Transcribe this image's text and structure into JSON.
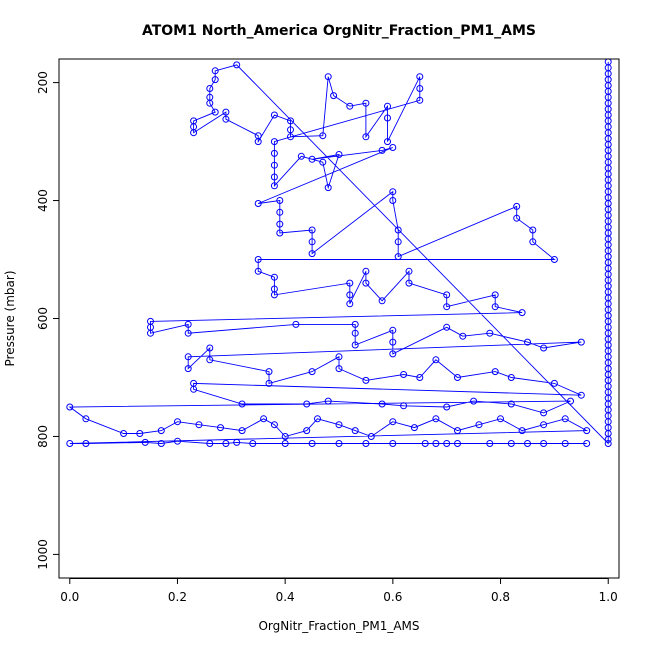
{
  "chart_data": {
    "type": "scatter",
    "title": "ATOM1 North_America OrgNitr_Fraction_PM1_AMS",
    "xlabel": "OrgNitr_Fraction_PM1_AMS",
    "ylabel": "Pressure (mbar)",
    "xlim": [
      -0.02,
      1.02
    ],
    "ylim": [
      1040,
      160
    ],
    "y_reversed": true,
    "grid": false,
    "x_ticks": [
      0.0,
      0.2,
      0.4,
      0.6,
      0.8,
      1.0
    ],
    "x_tick_labels": [
      "0.0",
      "0.2",
      "0.4",
      "0.6",
      "0.8",
      "1.0"
    ],
    "y_ticks": [
      200,
      400,
      600,
      800,
      1000
    ],
    "y_tick_labels": [
      "200",
      "400",
      "600",
      "800",
      "1000"
    ],
    "point_style": "open-circle",
    "connect_points": true,
    "series": [
      {
        "color": "#0000ff",
        "points": [
          [
            1.0,
            165
          ],
          [
            1.0,
            175
          ],
          [
            1.0,
            185
          ],
          [
            1.0,
            195
          ],
          [
            1.0,
            205
          ],
          [
            1.0,
            215
          ],
          [
            1.0,
            225
          ],
          [
            1.0,
            235
          ],
          [
            1.0,
            245
          ],
          [
            1.0,
            255
          ],
          [
            1.0,
            265
          ],
          [
            1.0,
            275
          ],
          [
            1.0,
            285
          ],
          [
            1.0,
            295
          ],
          [
            1.0,
            305
          ],
          [
            1.0,
            315
          ],
          [
            1.0,
            325
          ],
          [
            1.0,
            335
          ],
          [
            1.0,
            345
          ],
          [
            1.0,
            355
          ],
          [
            1.0,
            365
          ],
          [
            1.0,
            375
          ],
          [
            1.0,
            385
          ],
          [
            1.0,
            395
          ],
          [
            1.0,
            405
          ],
          [
            1.0,
            415
          ],
          [
            1.0,
            425
          ],
          [
            1.0,
            435
          ],
          [
            1.0,
            445
          ],
          [
            1.0,
            455
          ],
          [
            1.0,
            465
          ],
          [
            1.0,
            475
          ],
          [
            1.0,
            485
          ],
          [
            1.0,
            495
          ],
          [
            1.0,
            505
          ],
          [
            1.0,
            515
          ],
          [
            1.0,
            525
          ],
          [
            1.0,
            535
          ],
          [
            1.0,
            545
          ],
          [
            1.0,
            555
          ],
          [
            1.0,
            565
          ],
          [
            1.0,
            575
          ],
          [
            1.0,
            585
          ],
          [
            1.0,
            595
          ],
          [
            1.0,
            605
          ],
          [
            1.0,
            615
          ],
          [
            1.0,
            625
          ],
          [
            1.0,
            635
          ],
          [
            1.0,
            645
          ],
          [
            1.0,
            655
          ],
          [
            1.0,
            665
          ],
          [
            1.0,
            675
          ],
          [
            1.0,
            685
          ],
          [
            1.0,
            695
          ],
          [
            1.0,
            705
          ],
          [
            1.0,
            715
          ],
          [
            1.0,
            725
          ],
          [
            1.0,
            735
          ],
          [
            1.0,
            745
          ],
          [
            1.0,
            755
          ],
          [
            1.0,
            765
          ],
          [
            1.0,
            775
          ],
          [
            1.0,
            785
          ],
          [
            1.0,
            795
          ],
          [
            1.0,
            805
          ],
          [
            1.0,
            812
          ],
          [
            0.31,
            170
          ],
          [
            0.27,
            180
          ],
          [
            0.27,
            195
          ],
          [
            0.26,
            210
          ],
          [
            0.26,
            225
          ],
          [
            0.26,
            235
          ],
          [
            0.27,
            250
          ],
          [
            0.23,
            265
          ],
          [
            0.23,
            275
          ],
          [
            0.23,
            285
          ],
          [
            0.29,
            250
          ],
          [
            0.29,
            262
          ],
          [
            0.35,
            290
          ],
          [
            0.35,
            300
          ],
          [
            0.38,
            255
          ],
          [
            0.41,
            265
          ],
          [
            0.41,
            280
          ],
          [
            0.41,
            292
          ],
          [
            0.47,
            290
          ],
          [
            0.48,
            190
          ],
          [
            0.49,
            222
          ],
          [
            0.52,
            240
          ],
          [
            0.55,
            235
          ],
          [
            0.55,
            292
          ],
          [
            0.59,
            240
          ],
          [
            0.59,
            260
          ],
          [
            0.59,
            300
          ],
          [
            0.65,
            190
          ],
          [
            0.65,
            210
          ],
          [
            0.65,
            230
          ],
          [
            0.38,
            300
          ],
          [
            0.38,
            320
          ],
          [
            0.38,
            340
          ],
          [
            0.38,
            360
          ],
          [
            0.38,
            375
          ],
          [
            0.43,
            325
          ],
          [
            0.47,
            335
          ],
          [
            0.48,
            378
          ],
          [
            0.5,
            322
          ],
          [
            0.45,
            330
          ],
          [
            0.58,
            315
          ],
          [
            0.6,
            310
          ],
          [
            0.35,
            405
          ],
          [
            0.39,
            400
          ],
          [
            0.39,
            420
          ],
          [
            0.39,
            440
          ],
          [
            0.39,
            455
          ],
          [
            0.45,
            450
          ],
          [
            0.45,
            470
          ],
          [
            0.45,
            490
          ],
          [
            0.6,
            385
          ],
          [
            0.6,
            400
          ],
          [
            0.61,
            450
          ],
          [
            0.61,
            470
          ],
          [
            0.61,
            495
          ],
          [
            0.83,
            410
          ],
          [
            0.83,
            430
          ],
          [
            0.86,
            450
          ],
          [
            0.86,
            470
          ],
          [
            0.9,
            500
          ],
          [
            0.35,
            500
          ],
          [
            0.35,
            520
          ],
          [
            0.38,
            530
          ],
          [
            0.38,
            550
          ],
          [
            0.38,
            560
          ],
          [
            0.52,
            540
          ],
          [
            0.52,
            560
          ],
          [
            0.52,
            575
          ],
          [
            0.55,
            520
          ],
          [
            0.55,
            540
          ],
          [
            0.58,
            570
          ],
          [
            0.63,
            520
          ],
          [
            0.63,
            540
          ],
          [
            0.7,
            560
          ],
          [
            0.7,
            580
          ],
          [
            0.79,
            560
          ],
          [
            0.79,
            580
          ],
          [
            0.84,
            590
          ],
          [
            0.15,
            605
          ],
          [
            0.15,
            615
          ],
          [
            0.15,
            625
          ],
          [
            0.22,
            610
          ],
          [
            0.22,
            625
          ],
          [
            0.42,
            610
          ],
          [
            0.53,
            610
          ],
          [
            0.53,
            625
          ],
          [
            0.53,
            645
          ],
          [
            0.6,
            620
          ],
          [
            0.6,
            640
          ],
          [
            0.6,
            660
          ],
          [
            0.7,
            615
          ],
          [
            0.73,
            630
          ],
          [
            0.78,
            625
          ],
          [
            0.85,
            640
          ],
          [
            0.88,
            650
          ],
          [
            0.95,
            640
          ],
          [
            0.22,
            665
          ],
          [
            0.22,
            685
          ],
          [
            0.26,
            650
          ],
          [
            0.26,
            670
          ],
          [
            0.37,
            690
          ],
          [
            0.37,
            710
          ],
          [
            0.45,
            690
          ],
          [
            0.5,
            665
          ],
          [
            0.5,
            685
          ],
          [
            0.55,
            705
          ],
          [
            0.62,
            695
          ],
          [
            0.65,
            700
          ],
          [
            0.68,
            670
          ],
          [
            0.72,
            700
          ],
          [
            0.79,
            690
          ],
          [
            0.82,
            700
          ],
          [
            0.9,
            710
          ],
          [
            0.95,
            730
          ],
          [
            0.23,
            710
          ],
          [
            0.23,
            720
          ],
          [
            0.32,
            745
          ],
          [
            0.44,
            745
          ],
          [
            0.48,
            740
          ],
          [
            0.58,
            745
          ],
          [
            0.62,
            748
          ],
          [
            0.7,
            750
          ],
          [
            0.75,
            740
          ],
          [
            0.82,
            745
          ],
          [
            0.88,
            760
          ],
          [
            0.93,
            740
          ],
          [
            0.0,
            750
          ],
          [
            0.03,
            770
          ],
          [
            0.1,
            795
          ],
          [
            0.13,
            795
          ],
          [
            0.17,
            790
          ],
          [
            0.2,
            775
          ],
          [
            0.24,
            780
          ],
          [
            0.28,
            785
          ],
          [
            0.32,
            790
          ],
          [
            0.36,
            770
          ],
          [
            0.38,
            780
          ],
          [
            0.4,
            800
          ],
          [
            0.44,
            790
          ],
          [
            0.46,
            770
          ],
          [
            0.5,
            780
          ],
          [
            0.53,
            790
          ],
          [
            0.56,
            800
          ],
          [
            0.6,
            775
          ],
          [
            0.64,
            785
          ],
          [
            0.68,
            770
          ],
          [
            0.72,
            790
          ],
          [
            0.76,
            780
          ],
          [
            0.8,
            770
          ],
          [
            0.84,
            790
          ],
          [
            0.88,
            780
          ],
          [
            0.92,
            770
          ],
          [
            0.96,
            790
          ],
          [
            0.0,
            812
          ],
          [
            0.03,
            812
          ],
          [
            0.14,
            810
          ],
          [
            0.17,
            812
          ],
          [
            0.2,
            808
          ],
          [
            0.26,
            812
          ],
          [
            0.29,
            812
          ],
          [
            0.31,
            810
          ],
          [
            0.34,
            812
          ],
          [
            0.4,
            812
          ],
          [
            0.45,
            812
          ],
          [
            0.5,
            812
          ],
          [
            0.55,
            812
          ],
          [
            0.6,
            812
          ],
          [
            0.66,
            812
          ],
          [
            0.68,
            812
          ],
          [
            0.7,
            812
          ],
          [
            0.72,
            812
          ],
          [
            0.78,
            812
          ],
          [
            0.82,
            812
          ],
          [
            0.85,
            812
          ],
          [
            0.88,
            812
          ],
          [
            0.92,
            812
          ],
          [
            0.96,
            812
          ]
        ]
      }
    ]
  }
}
